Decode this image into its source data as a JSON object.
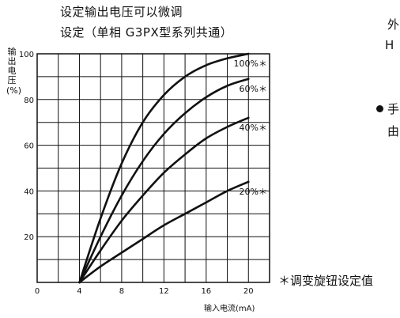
{
  "chart_data": {
    "type": "line",
    "title_line1": "设定输出电压可以微调",
    "title_line2": "设定（单相 G3PX型系列共通）",
    "xlabel": "输入电流(mA)",
    "ylabel": "输出电压",
    "ylabel_unit": "(%)",
    "xlim": [
      0,
      22
    ],
    "ylim": [
      0,
      100
    ],
    "x_ticks": [
      0,
      4,
      8,
      12,
      16,
      20
    ],
    "y_ticks": [
      20,
      40,
      60,
      80,
      100
    ],
    "grid": true,
    "series": [
      {
        "label": "100%＊",
        "points": [
          [
            4,
            0
          ],
          [
            6,
            28
          ],
          [
            8,
            52
          ],
          [
            10,
            70
          ],
          [
            12,
            82
          ],
          [
            14,
            90
          ],
          [
            16,
            95
          ],
          [
            18,
            98
          ],
          [
            20,
            100
          ]
        ]
      },
      {
        "label": "60%＊",
        "points": [
          [
            4,
            0
          ],
          [
            6,
            20
          ],
          [
            8,
            38
          ],
          [
            10,
            53
          ],
          [
            12,
            65
          ],
          [
            14,
            74
          ],
          [
            16,
            81
          ],
          [
            18,
            86
          ],
          [
            20,
            89
          ]
        ]
      },
      {
        "label": "40%＊",
        "points": [
          [
            4,
            0
          ],
          [
            6,
            14
          ],
          [
            8,
            27
          ],
          [
            10,
            38
          ],
          [
            12,
            48
          ],
          [
            14,
            56
          ],
          [
            16,
            63
          ],
          [
            18,
            68
          ],
          [
            20,
            72
          ]
        ]
      },
      {
        "label": "20%＊",
        "points": [
          [
            4,
            0
          ],
          [
            6,
            7
          ],
          [
            8,
            13
          ],
          [
            10,
            19
          ],
          [
            12,
            25
          ],
          [
            14,
            30
          ],
          [
            16,
            35
          ],
          [
            18,
            40
          ],
          [
            20,
            44
          ]
        ]
      }
    ],
    "footnote": "＊调变旋钮设定值"
  },
  "side_text": {
    "frag1": "外",
    "frag2": "H",
    "frag3": "手",
    "frag4": "由"
  }
}
